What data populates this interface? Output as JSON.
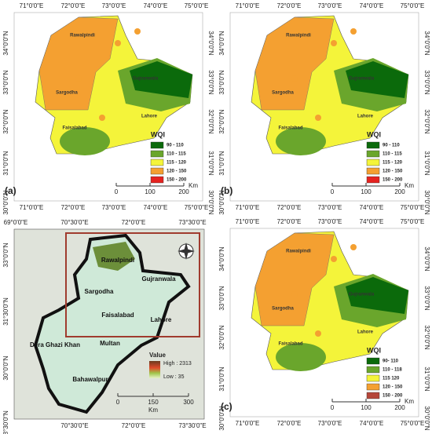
{
  "panels": [
    {
      "label": "(a)",
      "lon": [
        "71°0'0\"E",
        "72°0'0\"E",
        "73°0'0\"E",
        "74°0'0\"E",
        "75°0'0\"E"
      ],
      "lat": [
        "34°0'0\"N",
        "33°0'0\"N",
        "32°0'0\"N",
        "31°0'0\"N",
        "30°0'0\"N"
      ],
      "cities": [
        "Rawalpindi",
        "Gujranwala",
        "Sargodha",
        "Lahore",
        "Faisalabad"
      ],
      "legend": {
        "title": "WQI",
        "items": [
          {
            "label": "90 - 110",
            "color": "#0b6a0b"
          },
          {
            "label": "110 - 115",
            "color": "#6aa62c"
          },
          {
            "label": "115 - 120",
            "color": "#f4f43a"
          },
          {
            "label": "120 - 150",
            "color": "#f4a031"
          },
          {
            "label": "150 - 200",
            "color": "#e52320"
          }
        ]
      },
      "scale": {
        "ticks": [
          0,
          100,
          200
        ],
        "unit": "Km"
      }
    },
    {
      "label": "(b)",
      "lon": [
        "71°0'0\"E",
        "72°0'0\"E",
        "73°0'0\"E",
        "74°0'0\"E",
        "75°0'0\"E"
      ],
      "lat": [
        "34°0'0\"N",
        "33°0'0\"N",
        "32°0'0\"N",
        "31°0'0\"N",
        "30°0'0\"N"
      ],
      "cities": [
        "Rawalpindi",
        "Gujranwala",
        "Sargodha",
        "Lahore",
        "Faisalabad"
      ],
      "legend": {
        "title": "WQI",
        "items": [
          {
            "label": "90 - 110",
            "color": "#0b6a0b"
          },
          {
            "label": "110 - 115",
            "color": "#6aa62c"
          },
          {
            "label": "115 - 120",
            "color": "#f4f43a"
          },
          {
            "label": "120 - 150",
            "color": "#f4a031"
          },
          {
            "label": "150 - 200",
            "color": "#e52320"
          }
        ]
      },
      "scale": {
        "ticks": [
          0,
          100,
          200
        ],
        "unit": "Km"
      }
    },
    {
      "label": "(c)",
      "lon": [
        "71°0'0\"E",
        "72°0'0\"E",
        "73°0'0\"E",
        "74°0'0\"E",
        "75°0'0\"E"
      ],
      "lat": [
        "34°0'0\"N",
        "33°0'0\"N",
        "32°0'0\"N",
        "31°0'0\"N",
        "30°0'0\"N"
      ],
      "cities": [
        "Rawalpindi",
        "Gujranwala",
        "Sargodha",
        "Lahore",
        "Faisalabad"
      ],
      "legend": {
        "title": "WQI",
        "items": [
          {
            "label": "90- 110",
            "color": "#0b6a0b"
          },
          {
            "label": "110 - 118",
            "color": "#6aa62c"
          },
          {
            "label": "115 120",
            "color": "#f4f43a"
          },
          {
            "label": "120 - 150",
            "color": "#f4a031"
          },
          {
            "label": "150 - 200",
            "color": "#b5463a"
          }
        ]
      },
      "scale": {
        "ticks": [
          0,
          100,
          200
        ],
        "unit": "Km"
      }
    }
  ],
  "inset": {
    "lon_top": [
      "69°0'0\"E",
      "70°30'0\"E",
      "72°0'0\"E",
      "73°30'0\"E"
    ],
    "lon_bottom": [
      "70°30'0\"E",
      "72°0'0\"E",
      "73°30'0\"E"
    ],
    "lat": [
      "33°0'0\"N",
      "31°30'0\"N",
      "30°0'0\"N",
      "28°30'0\"N"
    ],
    "cities": [
      "Rawalpindi",
      "Sargodha",
      "Gujranwala",
      "Faisalabad",
      "Lahore",
      "Multan",
      "Dera Ghazi Khan",
      "Bahawalpur"
    ],
    "legend": {
      "title": "Value",
      "high": "High : 2313",
      "low": "Low : 35"
    },
    "scale": {
      "ticks": [
        0,
        150,
        300
      ],
      "unit": "Km"
    }
  }
}
